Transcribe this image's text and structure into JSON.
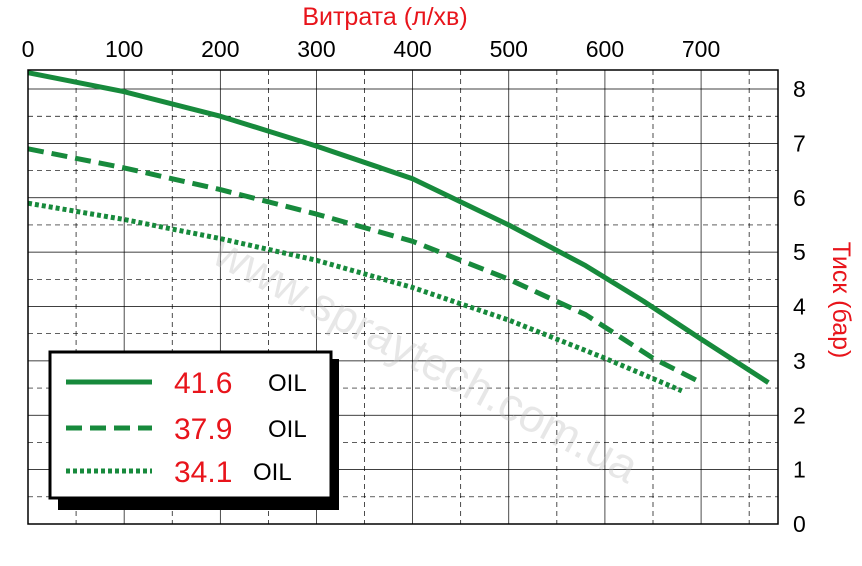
{
  "chart_data": {
    "type": "line",
    "xlabel": "Витрата (л/хв)",
    "ylabel": "Тиск (бар)",
    "xlim": [
      0,
      780
    ],
    "ylim": [
      0,
      8.35
    ],
    "x_ticks": [
      0,
      100,
      200,
      300,
      400,
      500,
      600,
      700
    ],
    "y_ticks": [
      0,
      1,
      2,
      3,
      4,
      5,
      6,
      7,
      8
    ],
    "grid": true,
    "legend_position": "bottom-left",
    "watermark": "www.spraytech.com.ua",
    "colors": {
      "series": "#178a3c",
      "legend_value": "#e8141b",
      "axis_title": "#e8141b"
    },
    "series": [
      {
        "value": "41.6",
        "unit": "OIL",
        "style": "solid",
        "x": [
          0,
          100,
          200,
          300,
          400,
          500,
          580,
          640,
          700,
          770
        ],
        "y": [
          8.3,
          7.95,
          7.5,
          6.95,
          6.35,
          5.5,
          4.75,
          4.1,
          3.4,
          2.6
        ]
      },
      {
        "value": "37.9",
        "unit": "OIL",
        "style": "dashed",
        "x": [
          0,
          100,
          200,
          300,
          400,
          500,
          580,
          650,
          700
        ],
        "y": [
          6.9,
          6.55,
          6.15,
          5.7,
          5.2,
          4.5,
          3.85,
          3.05,
          2.6
        ]
      },
      {
        "value": "34.1",
        "unit": "OIL",
        "style": "dotted",
        "x": [
          0,
          100,
          200,
          300,
          400,
          500,
          600,
          680
        ],
        "y": [
          5.9,
          5.6,
          5.25,
          4.85,
          4.35,
          3.75,
          3.05,
          2.45
        ]
      }
    ]
  }
}
